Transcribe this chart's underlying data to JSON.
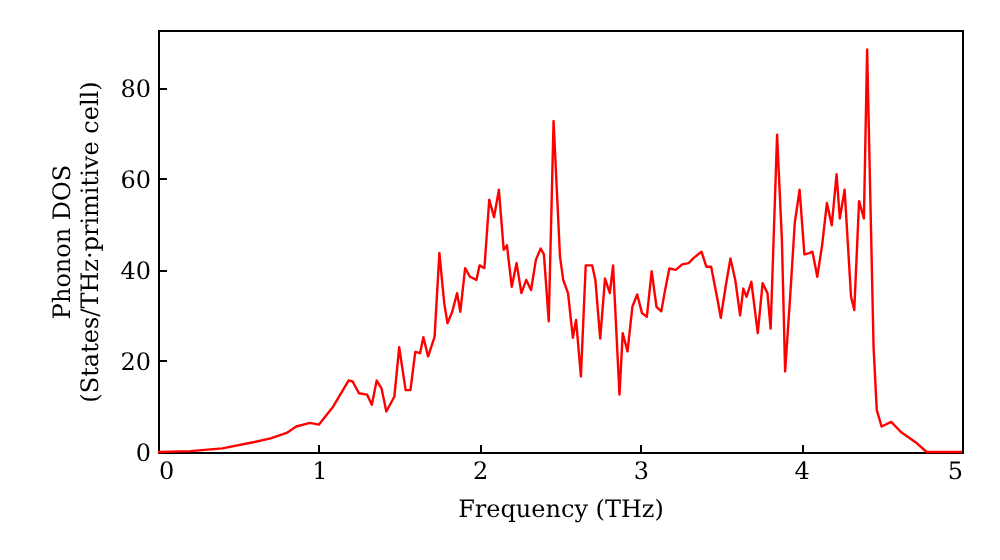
{
  "chart_data": {
    "type": "line",
    "xlabel": "Frequency (THz)",
    "ylabel": "Phonon DOS\n(States/THz·primitive cell)",
    "xlim": [
      0,
      5
    ],
    "ylim": [
      0,
      92.7
    ],
    "xticks": [
      0,
      1,
      2,
      3,
      4,
      5
    ],
    "yticks": [
      0,
      20,
      40,
      60,
      80
    ],
    "grid": false,
    "marker": "none",
    "line_style": "solid",
    "series": [
      {
        "color": "#ff0000",
        "x": [
          0,
          0.2,
          0.4,
          0.6,
          0.7,
          0.8,
          0.86,
          0.945,
          1.0,
          1.09,
          1.185,
          1.21,
          1.25,
          1.3,
          1.33,
          1.36,
          1.39,
          1.42,
          1.47,
          1.5,
          1.54,
          1.57,
          1.6,
          1.63,
          1.65,
          1.68,
          1.72,
          1.75,
          1.78,
          1.8,
          1.83,
          1.86,
          1.88,
          1.91,
          1.94,
          1.98,
          2.0,
          2.03,
          2.06,
          2.09,
          2.12,
          2.15,
          2.17,
          2.2,
          2.23,
          2.26,
          2.29,
          2.32,
          2.35,
          2.38,
          2.4,
          2.43,
          2.46,
          2.5,
          2.52,
          2.55,
          2.58,
          2.6,
          2.63,
          2.66,
          2.7,
          2.72,
          2.75,
          2.78,
          2.81,
          2.83,
          2.87,
          2.89,
          2.92,
          2.95,
          2.98,
          3.01,
          3.04,
          3.07,
          3.1,
          3.13,
          3.15,
          3.18,
          3.22,
          3.26,
          3.3,
          3.33,
          3.38,
          3.41,
          3.44,
          3.48,
          3.5,
          3.53,
          3.56,
          3.59,
          3.62,
          3.64,
          3.66,
          3.69,
          3.73,
          3.76,
          3.79,
          3.81,
          3.85,
          3.88,
          3.9,
          3.93,
          3.96,
          3.99,
          4.02,
          4.05,
          4.07,
          4.1,
          4.13,
          4.16,
          4.19,
          4.22,
          4.24,
          4.27,
          4.31,
          4.33,
          4.36,
          4.39,
          4.41,
          4.45,
          4.47,
          4.5,
          4.56,
          4.62,
          4.72,
          4.78,
          5.0
        ],
        "values": [
          0,
          0.2,
          0.8,
          2.2,
          3.0,
          4.2,
          5.6,
          6.4,
          6.0,
          10,
          15.7,
          15.5,
          12.9,
          12.6,
          10.4,
          15.7,
          14,
          8.9,
          12.2,
          23,
          13.6,
          13.6,
          22,
          21.7,
          25.2,
          21,
          25.3,
          43.7,
          32.7,
          28.3,
          30.8,
          34.9,
          30.8,
          40.4,
          38.5,
          37.8,
          41,
          40.4,
          55.4,
          51.6,
          57.6,
          44.4,
          45.4,
          36.3,
          41.5,
          34.9,
          37.8,
          35.6,
          42.2,
          44.7,
          43.4,
          28.7,
          72.7,
          42.9,
          37.8,
          34.9,
          25.1,
          29,
          16.6,
          41,
          41,
          37.8,
          24.9,
          38.1,
          34.9,
          41,
          12.6,
          26.1,
          22.1,
          31.9,
          34.6,
          30.5,
          29.7,
          39.7,
          31.9,
          30.9,
          34.9,
          40.3,
          40,
          41.2,
          41.5,
          42.6,
          44,
          40.7,
          40.7,
          33.4,
          29.5,
          36.3,
          42.5,
          37.8,
          30,
          35.9,
          34.1,
          37.4,
          26.1,
          37.1,
          34.9,
          27.1,
          69.7,
          46.6,
          17.7,
          33.4,
          50.3,
          57.6,
          43.4,
          43.7,
          44,
          38.5,
          45.4,
          54.7,
          49.8,
          61,
          51.3,
          57.6,
          34.1,
          31.2,
          55.1,
          51.3,
          88.4,
          23.1,
          9.2,
          5.6,
          6.6,
          4.4,
          1.9,
          0,
          0
        ]
      }
    ]
  }
}
